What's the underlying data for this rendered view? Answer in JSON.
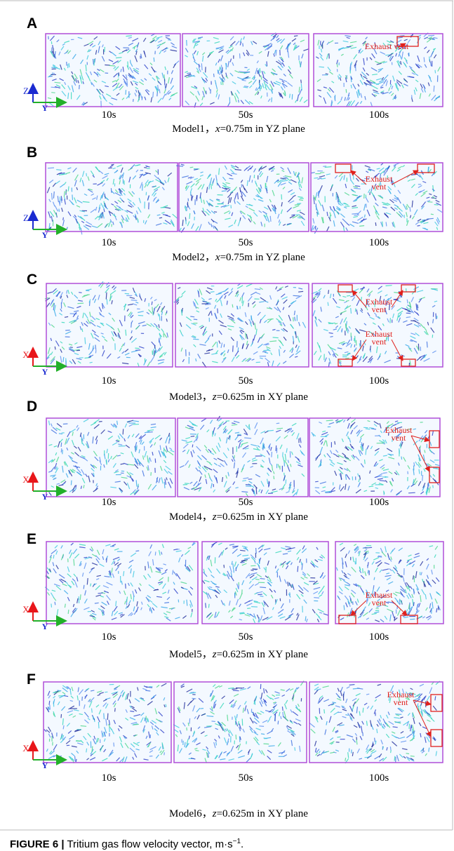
{
  "panels": [
    {
      "letter": "A",
      "vertical_axis": "Z",
      "horizontal_axis": "Y",
      "times": [
        "10s",
        "50s",
        "100s"
      ],
      "caption": {
        "model": "Model1，",
        "variable": "x",
        "rest": "=0.75m in YZ plane"
      },
      "annotations": [
        {
          "lines": [
            "Exhaust vent"
          ]
        }
      ]
    },
    {
      "letter": "B",
      "vertical_axis": "Z",
      "horizontal_axis": "Y",
      "times": [
        "10s",
        "50s",
        "100s"
      ],
      "caption": {
        "model": "Model2，",
        "variable": "x",
        "rest": "=0.75m in YZ plane"
      },
      "annotations": [
        {
          "lines": [
            "Exhaust",
            "vent"
          ]
        }
      ]
    },
    {
      "letter": "C",
      "vertical_axis": "X",
      "horizontal_axis": "Y",
      "times": [
        "10s",
        "50s",
        "100s"
      ],
      "caption": {
        "model": "Model3，",
        "variable": "z",
        "rest": "=0.625m in XY plane"
      },
      "annotations": [
        {
          "lines": [
            "Exhaust",
            "vent"
          ]
        },
        {
          "lines": [
            "Exhaust",
            "vent"
          ]
        }
      ]
    },
    {
      "letter": "D",
      "vertical_axis": "X",
      "horizontal_axis": "Y",
      "times": [
        "10s",
        "50s",
        "100s"
      ],
      "caption": {
        "model": "Model4，",
        "variable": "z",
        "rest": "=0.625m in XY plane"
      },
      "annotations": [
        {
          "lines": [
            "Exhaust",
            "vent"
          ]
        }
      ]
    },
    {
      "letter": "E",
      "vertical_axis": "X",
      "horizontal_axis": "Y",
      "times": [
        "10s",
        "50s",
        "100s"
      ],
      "caption": {
        "model": "Model5，",
        "variable": "z",
        "rest": "=0.625m in XY plane"
      },
      "annotations": [
        {
          "lines": [
            "Exhaust",
            "vent"
          ]
        }
      ]
    },
    {
      "letter": "F",
      "vertical_axis": "X",
      "horizontal_axis": "Y",
      "times": [
        "10s",
        "50s",
        "100s"
      ],
      "caption": {
        "model": "Model6，",
        "variable": "z",
        "rest": "=0.625m in XY plane"
      },
      "annotations": [
        {
          "lines": [
            "Exhaust",
            "vent"
          ]
        }
      ]
    }
  ],
  "figure_caption": {
    "label": "FIGURE 6 |",
    "text": "Tritium gas flow velocity vector, m·s",
    "superscript": "−1",
    "end": "."
  }
}
